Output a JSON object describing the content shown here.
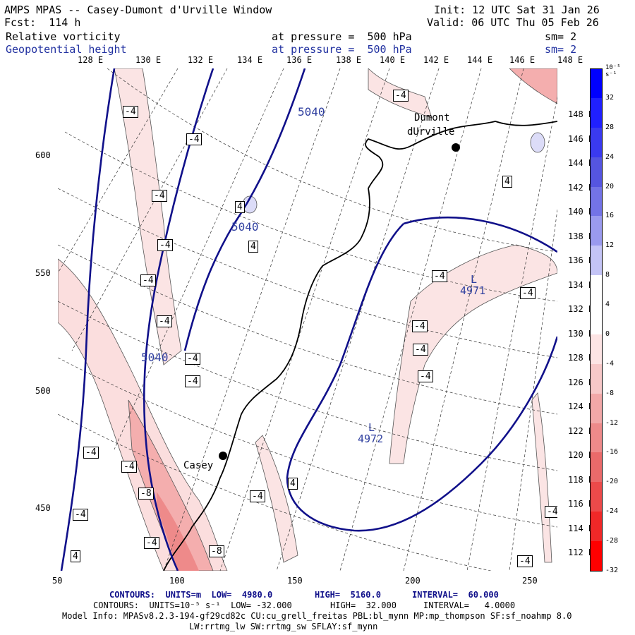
{
  "header": {
    "title": "AMPS MPAS -- Casey-Dumont d'Urville Window",
    "forecast": "Fcst:  114 h",
    "init": "Init: 12 UTC Sat 31 Jan 26",
    "valid": "Valid: 06 UTC Thu 05 Feb 26",
    "field1": {
      "name": "Relative vorticity",
      "level": "at pressure =  500 hPa",
      "smooth": "sm= 2"
    },
    "field2": {
      "name": "Geopotential height",
      "level": "at pressure =  500 hPa",
      "smooth": "sm= 2"
    }
  },
  "top_longitudes": [
    "128 E",
    "130 E",
    "132 E",
    "134 E",
    "136 E",
    "138 E",
    "140 E",
    "142 E",
    "144 E",
    "146 E",
    "148 E"
  ],
  "right_longitudes": [
    "148 E",
    "146 E",
    "144 E",
    "142 E",
    "140 E",
    "138 E",
    "136 E",
    "134 E",
    "132 E",
    "130 E",
    "128 E",
    "126 E",
    "124 E",
    "122 E",
    "120 E",
    "118 E",
    "116 E",
    "114 E",
    "112 E"
  ],
  "x_ticks": [
    "50",
    "100",
    "150",
    "200",
    "250"
  ],
  "y_ticks": [
    "600",
    "550",
    "500",
    "450"
  ],
  "colorbar": {
    "unit_label": "10⁻⁵ s⁻¹",
    "labels": [
      "32",
      "28",
      "24",
      "20",
      "16",
      "12",
      "8",
      "4",
      "0",
      "-4",
      "-8",
      "-12",
      "-16",
      "-20",
      "-24",
      "-28",
      "-32"
    ],
    "colors": [
      "#0000ff",
      "#2020ff",
      "#3a3aef",
      "#5555e0",
      "#7373e6",
      "#9a9aee",
      "#c4c4f6",
      "#ffffff",
      "#ffffff",
      "#fde4e4",
      "#f7c8c8",
      "#f2a8a8",
      "#ee8a8a",
      "#ea6a6a",
      "#ec4a4a",
      "#f02828",
      "#ff0000"
    ]
  },
  "map_labels": {
    "stations": [
      "Dumont",
      "dUrville",
      "Casey"
    ],
    "height_labels": [
      "5040",
      "5040",
      "5040"
    ],
    "lows": [
      {
        "symbol": "L",
        "value": "4971"
      },
      {
        "symbol": "L",
        "value": "4972"
      }
    ],
    "vort_boxes": [
      "-4",
      "-4",
      "-4",
      "-4",
      "4",
      "4",
      "-4",
      "-4",
      "-4",
      "-4",
      "-4",
      "-4",
      "-4",
      "-4",
      "-4",
      "-4",
      "-4",
      "-4",
      "-8",
      "-4",
      "-4",
      "4",
      "-4",
      "-4",
      "-8",
      "4",
      "-4",
      "-4",
      "-4",
      "4"
    ]
  },
  "footer": {
    "line1_a": "CONTOURS:  UNITS=m  LOW=  4980.0",
    "line1_b": "HIGH=  5160.0",
    "line1_c": "INTERVAL=  60.000",
    "line2_a": "CONTOURS:  UNITS=10⁻⁵ s⁻¹  LOW= -32.000",
    "line2_b": "HIGH=  32.000",
    "line2_c": "INTERVAL=   4.0000",
    "model": "Model Info: MPASv8.2.3-194-gf29cd82c CU:cu_grell_freitas PBL:bl_mynn MP:mp_thompson SF:sf_noahmp 8.0",
    "model2": "LW:rrtmg_lw SW:rrtmg_sw SFLAY:sf_mynn"
  }
}
